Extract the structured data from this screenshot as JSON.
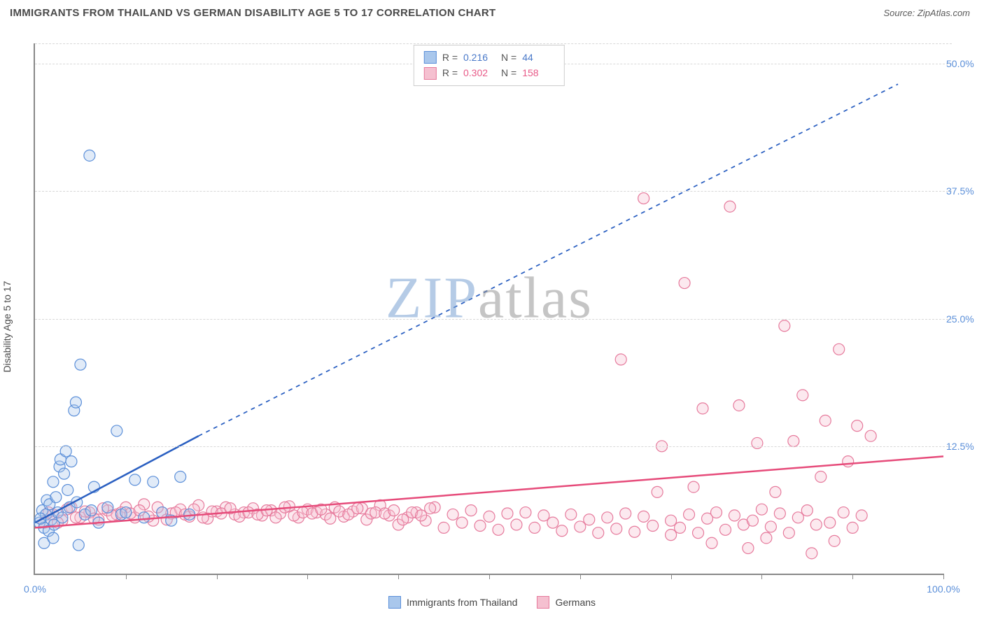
{
  "header": {
    "title": "IMMIGRANTS FROM THAILAND VS GERMAN DISABILITY AGE 5 TO 17 CORRELATION CHART",
    "source": "Source: ZipAtlas.com"
  },
  "chart": {
    "type": "scatter",
    "watermark": {
      "zip": "ZIP",
      "atlas": "atlas"
    },
    "ylabel": "Disability Age 5 to 17",
    "xlim": [
      0,
      100
    ],
    "ylim": [
      0,
      52
    ],
    "yticks": [
      {
        "value": 12.5,
        "label": "12.5%"
      },
      {
        "value": 25.0,
        "label": "25.0%"
      },
      {
        "value": 37.5,
        "label": "37.5%"
      },
      {
        "value": 50.0,
        "label": "50.0%"
      }
    ],
    "xticks_major": [
      {
        "value": 0,
        "label": "0.0%"
      },
      {
        "value": 100,
        "label": "100.0%"
      }
    ],
    "xticks_minor": [
      10,
      20,
      30,
      40,
      50,
      60,
      70,
      80,
      90,
      100
    ],
    "marker_radius": 8,
    "marker_stroke_width": 1.2,
    "marker_fill_opacity": 0.35,
    "background_color": "#ffffff",
    "grid_color": "#d8d8d8",
    "axis_color": "#888888",
    "series": [
      {
        "name": "Immigrants from Thailand",
        "color_stroke": "#5b8fd9",
        "color_fill": "#a9c7ec",
        "stats": {
          "R": "0.216",
          "N": "44",
          "stat_color": "#4a79c9"
        },
        "trend_line": {
          "color": "#2a5fc1",
          "width": 2.5,
          "solid_segment": {
            "x1": 0,
            "y1": 5.0,
            "x2": 18,
            "y2": 13.5
          },
          "dashed_segment": {
            "x1": 18,
            "y1": 13.5,
            "x2": 95,
            "y2": 48.0
          },
          "dash_pattern": "6,6"
        },
        "points": [
          {
            "x": 0.5,
            "y": 5.0
          },
          {
            "x": 0.8,
            "y": 6.2
          },
          {
            "x": 1.0,
            "y": 4.5
          },
          {
            "x": 1.2,
            "y": 5.8
          },
          {
            "x": 1.3,
            "y": 7.2
          },
          {
            "x": 1.5,
            "y": 4.2
          },
          {
            "x": 1.6,
            "y": 6.8
          },
          {
            "x": 1.8,
            "y": 5.3
          },
          {
            "x": 2.0,
            "y": 9.0
          },
          {
            "x": 2.1,
            "y": 4.8
          },
          {
            "x": 2.3,
            "y": 7.5
          },
          {
            "x": 2.5,
            "y": 6.0
          },
          {
            "x": 2.7,
            "y": 10.5
          },
          {
            "x": 2.8,
            "y": 11.2
          },
          {
            "x": 3.0,
            "y": 5.5
          },
          {
            "x": 3.2,
            "y": 9.8
          },
          {
            "x": 3.4,
            "y": 12.0
          },
          {
            "x": 3.6,
            "y": 8.2
          },
          {
            "x": 3.8,
            "y": 6.5
          },
          {
            "x": 4.0,
            "y": 11.0
          },
          {
            "x": 4.3,
            "y": 16.0
          },
          {
            "x": 4.5,
            "y": 16.8
          },
          {
            "x": 4.6,
            "y": 7.0
          },
          {
            "x": 5.0,
            "y": 20.5
          },
          {
            "x": 5.5,
            "y": 5.8
          },
          {
            "x": 6.0,
            "y": 41.0
          },
          {
            "x": 6.2,
            "y": 6.2
          },
          {
            "x": 6.5,
            "y": 8.5
          },
          {
            "x": 7.0,
            "y": 5.0
          },
          {
            "x": 8.0,
            "y": 6.5
          },
          {
            "x": 9.0,
            "y": 14.0
          },
          {
            "x": 9.5,
            "y": 5.8
          },
          {
            "x": 10.0,
            "y": 6.0
          },
          {
            "x": 11.0,
            "y": 9.2
          },
          {
            "x": 12.0,
            "y": 5.5
          },
          {
            "x": 13.0,
            "y": 9.0
          },
          {
            "x": 14.0,
            "y": 6.0
          },
          {
            "x": 15.0,
            "y": 5.2
          },
          {
            "x": 16.0,
            "y": 9.5
          },
          {
            "x": 17.0,
            "y": 5.8
          },
          {
            "x": 1.0,
            "y": 3.0
          },
          {
            "x": 2.0,
            "y": 3.5
          },
          {
            "x": 0.6,
            "y": 5.4
          },
          {
            "x": 4.8,
            "y": 2.8
          }
        ]
      },
      {
        "name": "Germans",
        "color_stroke": "#e67a9c",
        "color_fill": "#f5c0d0",
        "stats": {
          "R": "0.302",
          "N": "158",
          "stat_color": "#e85a88"
        },
        "trend_line": {
          "color": "#e64b7a",
          "width": 2.5,
          "solid_segment": {
            "x1": 0,
            "y1": 4.5,
            "x2": 100,
            "y2": 11.5
          },
          "dashed_segment": null
        },
        "points": [
          {
            "x": 1,
            "y": 5.0
          },
          {
            "x": 2,
            "y": 5.8
          },
          {
            "x": 3,
            "y": 5.2
          },
          {
            "x": 4,
            "y": 6.5
          },
          {
            "x": 5,
            "y": 5.5
          },
          {
            "x": 6,
            "y": 6.0
          },
          {
            "x": 7,
            "y": 5.3
          },
          {
            "x": 8,
            "y": 6.2
          },
          {
            "x": 9,
            "y": 5.8
          },
          {
            "x": 10,
            "y": 6.5
          },
          {
            "x": 11,
            "y": 5.5
          },
          {
            "x": 12,
            "y": 6.8
          },
          {
            "x": 13,
            "y": 5.2
          },
          {
            "x": 14,
            "y": 6.0
          },
          {
            "x": 15,
            "y": 5.9
          },
          {
            "x": 16,
            "y": 6.3
          },
          {
            "x": 17,
            "y": 5.6
          },
          {
            "x": 18,
            "y": 6.7
          },
          {
            "x": 19,
            "y": 5.4
          },
          {
            "x": 20,
            "y": 6.1
          },
          {
            "x": 21,
            "y": 6.5
          },
          {
            "x": 22,
            "y": 5.8
          },
          {
            "x": 23,
            "y": 6.0
          },
          {
            "x": 24,
            "y": 6.4
          },
          {
            "x": 25,
            "y": 5.7
          },
          {
            "x": 26,
            "y": 6.2
          },
          {
            "x": 27,
            "y": 5.9
          },
          {
            "x": 28,
            "y": 6.6
          },
          {
            "x": 29,
            "y": 5.5
          },
          {
            "x": 30,
            "y": 6.3
          },
          {
            "x": 31,
            "y": 6.0
          },
          {
            "x": 32,
            "y": 5.8
          },
          {
            "x": 33,
            "y": 6.5
          },
          {
            "x": 34,
            "y": 5.6
          },
          {
            "x": 35,
            "y": 6.1
          },
          {
            "x": 36,
            "y": 6.4
          },
          {
            "x": 36.5,
            "y": 5.3
          },
          {
            "x": 37,
            "y": 5.9
          },
          {
            "x": 38,
            "y": 6.7
          },
          {
            "x": 39,
            "y": 5.7
          },
          {
            "x": 40,
            "y": 4.8
          },
          {
            "x": 41,
            "y": 5.5
          },
          {
            "x": 42,
            "y": 6.0
          },
          {
            "x": 43,
            "y": 5.2
          },
          {
            "x": 44,
            "y": 6.5
          },
          {
            "x": 45,
            "y": 4.5
          },
          {
            "x": 46,
            "y": 5.8
          },
          {
            "x": 47,
            "y": 5.0
          },
          {
            "x": 48,
            "y": 6.2
          },
          {
            "x": 49,
            "y": 4.7
          },
          {
            "x": 50,
            "y": 5.6
          },
          {
            "x": 51,
            "y": 4.3
          },
          {
            "x": 52,
            "y": 5.9
          },
          {
            "x": 53,
            "y": 4.8
          },
          {
            "x": 54,
            "y": 6.0
          },
          {
            "x": 55,
            "y": 4.5
          },
          {
            "x": 56,
            "y": 5.7
          },
          {
            "x": 57,
            "y": 5.0
          },
          {
            "x": 58,
            "y": 4.2
          },
          {
            "x": 59,
            "y": 5.8
          },
          {
            "x": 60,
            "y": 4.6
          },
          {
            "x": 61,
            "y": 5.3
          },
          {
            "x": 62,
            "y": 4.0
          },
          {
            "x": 63,
            "y": 5.5
          },
          {
            "x": 64,
            "y": 4.4
          },
          {
            "x": 64.5,
            "y": 21.0
          },
          {
            "x": 65,
            "y": 5.9
          },
          {
            "x": 66,
            "y": 4.1
          },
          {
            "x": 67,
            "y": 36.8
          },
          {
            "x": 67,
            "y": 5.6
          },
          {
            "x": 68,
            "y": 4.7
          },
          {
            "x": 68.5,
            "y": 8.0
          },
          {
            "x": 69,
            "y": 12.5
          },
          {
            "x": 70,
            "y": 3.8
          },
          {
            "x": 70,
            "y": 5.2
          },
          {
            "x": 71,
            "y": 4.5
          },
          {
            "x": 71.5,
            "y": 28.5
          },
          {
            "x": 72,
            "y": 5.8
          },
          {
            "x": 72.5,
            "y": 8.5
          },
          {
            "x": 73,
            "y": 4.0
          },
          {
            "x": 73.5,
            "y": 16.2
          },
          {
            "x": 74,
            "y": 5.4
          },
          {
            "x": 74.5,
            "y": 3.0
          },
          {
            "x": 75,
            "y": 6.0
          },
          {
            "x": 76,
            "y": 4.3
          },
          {
            "x": 76.5,
            "y": 36.0
          },
          {
            "x": 77,
            "y": 5.7
          },
          {
            "x": 77.5,
            "y": 16.5
          },
          {
            "x": 78,
            "y": 4.8
          },
          {
            "x": 78.5,
            "y": 2.5
          },
          {
            "x": 79,
            "y": 5.2
          },
          {
            "x": 79.5,
            "y": 12.8
          },
          {
            "x": 80,
            "y": 6.3
          },
          {
            "x": 80.5,
            "y": 3.5
          },
          {
            "x": 81,
            "y": 4.6
          },
          {
            "x": 81.5,
            "y": 8.0
          },
          {
            "x": 82,
            "y": 5.9
          },
          {
            "x": 82.5,
            "y": 24.3
          },
          {
            "x": 83,
            "y": 4.0
          },
          {
            "x": 83.5,
            "y": 13.0
          },
          {
            "x": 84,
            "y": 5.5
          },
          {
            "x": 84.5,
            "y": 17.5
          },
          {
            "x": 85,
            "y": 6.2
          },
          {
            "x": 85.5,
            "y": 2.0
          },
          {
            "x": 86,
            "y": 4.8
          },
          {
            "x": 86.5,
            "y": 9.5
          },
          {
            "x": 87,
            "y": 15.0
          },
          {
            "x": 87.5,
            "y": 5.0
          },
          {
            "x": 88,
            "y": 3.2
          },
          {
            "x": 88.5,
            "y": 22.0
          },
          {
            "x": 89,
            "y": 6.0
          },
          {
            "x": 89.5,
            "y": 11.0
          },
          {
            "x": 90,
            "y": 4.5
          },
          {
            "x": 90.5,
            "y": 14.5
          },
          {
            "x": 91,
            "y": 5.7
          },
          {
            "x": 92,
            "y": 13.5
          },
          {
            "x": 1.5,
            "y": 6.0
          },
          {
            "x": 2.5,
            "y": 5.0
          },
          {
            "x": 3.5,
            "y": 6.3
          },
          {
            "x": 4.5,
            "y": 5.5
          },
          {
            "x": 5.5,
            "y": 6.1
          },
          {
            "x": 6.5,
            "y": 5.4
          },
          {
            "x": 7.5,
            "y": 6.4
          },
          {
            "x": 8.5,
            "y": 5.7
          },
          {
            "x": 9.5,
            "y": 6.0
          },
          {
            "x": 10.5,
            "y": 5.9
          },
          {
            "x": 11.5,
            "y": 6.2
          },
          {
            "x": 12.5,
            "y": 5.6
          },
          {
            "x": 13.5,
            "y": 6.5
          },
          {
            "x": 14.5,
            "y": 5.3
          },
          {
            "x": 15.5,
            "y": 6.0
          },
          {
            "x": 16.5,
            "y": 5.8
          },
          {
            "x": 17.5,
            "y": 6.3
          },
          {
            "x": 18.5,
            "y": 5.5
          },
          {
            "x": 19.5,
            "y": 6.1
          },
          {
            "x": 20.5,
            "y": 5.9
          },
          {
            "x": 21.5,
            "y": 6.4
          },
          {
            "x": 22.5,
            "y": 5.6
          },
          {
            "x": 23.5,
            "y": 6.0
          },
          {
            "x": 24.5,
            "y": 5.8
          },
          {
            "x": 25.5,
            "y": 6.2
          },
          {
            "x": 26.5,
            "y": 5.5
          },
          {
            "x": 27.5,
            "y": 6.5
          },
          {
            "x": 28.5,
            "y": 5.7
          },
          {
            "x": 29.5,
            "y": 6.0
          },
          {
            "x": 30.5,
            "y": 5.9
          },
          {
            "x": 31.5,
            "y": 6.3
          },
          {
            "x": 32.5,
            "y": 5.4
          },
          {
            "x": 33.5,
            "y": 6.1
          },
          {
            "x": 34.5,
            "y": 5.8
          },
          {
            "x": 35.5,
            "y": 6.4
          },
          {
            "x": 37.5,
            "y": 6.0
          },
          {
            "x": 38.5,
            "y": 5.9
          },
          {
            "x": 39.5,
            "y": 6.2
          },
          {
            "x": 40.5,
            "y": 5.3
          },
          {
            "x": 41.5,
            "y": 6.0
          },
          {
            "x": 42.5,
            "y": 5.7
          },
          {
            "x": 43.5,
            "y": 6.4
          }
        ]
      }
    ],
    "legend_bottom": [
      {
        "label": "Immigrants from Thailand",
        "swatch_fill": "#a9c7ec",
        "swatch_stroke": "#5b8fd9"
      },
      {
        "label": "Germans",
        "swatch_fill": "#f5c0d0",
        "swatch_stroke": "#e67a9c"
      }
    ]
  }
}
